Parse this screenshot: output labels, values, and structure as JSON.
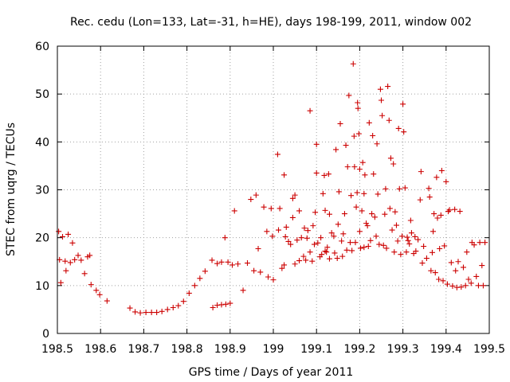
{
  "chart_data": {
    "type": "scatter",
    "title": "Rec. cedu (Lon=133, Lat=-31, h=HE), days 198-199, 2011, window 002",
    "xlabel": "GPS time / Days of year 2011",
    "ylabel": "STEC from uqrg / TECUs",
    "xlim": [
      198.5,
      199.5
    ],
    "ylim": [
      0,
      60
    ],
    "xticks": [
      198.5,
      198.6,
      198.7,
      198.8,
      198.9,
      199,
      199.1,
      199.2,
      199.3,
      199.4,
      199.5
    ],
    "xtick_labels": [
      "198.5",
      "198.6",
      "198.7",
      "198.8",
      "198.9",
      "199",
      "199.1",
      "199.2",
      "199.3",
      "199.4",
      "199.5"
    ],
    "yticks": [
      0,
      10,
      20,
      30,
      40,
      50,
      60
    ],
    "ytick_labels": [
      "0",
      "10",
      "20",
      "30",
      "40",
      "50",
      "60"
    ],
    "grid": true,
    "marker": "+",
    "color": "#cc0000",
    "series": [
      {
        "name": "STEC",
        "points": [
          [
            198.503,
            21.3
          ],
          [
            198.505,
            15.4
          ],
          [
            198.508,
            10.6
          ],
          [
            198.512,
            20.2
          ],
          [
            198.518,
            15.1
          ],
          [
            198.52,
            13.1
          ],
          [
            198.525,
            20.7
          ],
          [
            198.53,
            14.8
          ],
          [
            198.535,
            18.9
          ],
          [
            198.54,
            15.4
          ],
          [
            198.548,
            16.3
          ],
          [
            198.555,
            15.3
          ],
          [
            198.563,
            12.5
          ],
          [
            198.57,
            16.0
          ],
          [
            198.575,
            16.3
          ],
          [
            198.578,
            10.2
          ],
          [
            198.59,
            9.0
          ],
          [
            198.598,
            8.1
          ],
          [
            198.615,
            6.8
          ],
          [
            198.668,
            5.3
          ],
          [
            198.68,
            4.5
          ],
          [
            198.692,
            4.3
          ],
          [
            198.705,
            4.4
          ],
          [
            198.718,
            4.4
          ],
          [
            198.73,
            4.4
          ],
          [
            198.742,
            4.6
          ],
          [
            198.755,
            5.0
          ],
          [
            198.768,
            5.4
          ],
          [
            198.78,
            5.8
          ],
          [
            198.792,
            6.7
          ],
          [
            198.805,
            8.4
          ],
          [
            198.818,
            10.0
          ],
          [
            198.83,
            11.5
          ],
          [
            198.842,
            13.0
          ],
          [
            198.86,
            5.4
          ],
          [
            198.87,
            5.9
          ],
          [
            198.88,
            6.0
          ],
          [
            198.89,
            6.1
          ],
          [
            198.9,
            6.3
          ],
          [
            198.858,
            15.3
          ],
          [
            198.87,
            14.6
          ],
          [
            198.88,
            14.9
          ],
          [
            198.888,
            20.0
          ],
          [
            198.895,
            14.9
          ],
          [
            198.905,
            14.3
          ],
          [
            198.91,
            25.6
          ],
          [
            198.918,
            14.5
          ],
          [
            198.93,
            9.0
          ],
          [
            198.94,
            14.7
          ],
          [
            198.948,
            28.0
          ],
          [
            198.955,
            13.1
          ],
          [
            198.96,
            28.9
          ],
          [
            198.965,
            17.7
          ],
          [
            198.97,
            12.8
          ],
          [
            198.978,
            26.4
          ],
          [
            198.985,
            21.3
          ],
          [
            198.988,
            11.8
          ],
          [
            198.995,
            26.1
          ],
          [
            198.998,
            20.3
          ],
          [
            199.0,
            11.2
          ],
          [
            199.01,
            37.4
          ],
          [
            199.012,
            21.6
          ],
          [
            199.015,
            26.1
          ],
          [
            199.02,
            13.6
          ],
          [
            199.025,
            14.3
          ],
          [
            199.025,
            33.1
          ],
          [
            199.028,
            20.2
          ],
          [
            199.03,
            22.2
          ],
          [
            199.035,
            19.2
          ],
          [
            199.04,
            18.6
          ],
          [
            199.045,
            24.2
          ],
          [
            199.045,
            28.2
          ],
          [
            199.05,
            14.5
          ],
          [
            199.05,
            28.9
          ],
          [
            199.055,
            19.5
          ],
          [
            199.06,
            15.2
          ],
          [
            199.06,
            25.6
          ],
          [
            199.065,
            20.0
          ],
          [
            199.07,
            16.1
          ],
          [
            199.072,
            22.0
          ],
          [
            199.075,
            15.3
          ],
          [
            199.078,
            19.9
          ],
          [
            199.08,
            21.5
          ],
          [
            199.085,
            17.0
          ],
          [
            199.085,
            46.5
          ],
          [
            199.09,
            15.1
          ],
          [
            199.092,
            22.5
          ],
          [
            199.095,
            18.6
          ],
          [
            199.097,
            25.3
          ],
          [
            199.1,
            39.5
          ],
          [
            199.1,
            33.5
          ],
          [
            199.103,
            18.9
          ],
          [
            199.108,
            16.0
          ],
          [
            199.11,
            20.0
          ],
          [
            199.112,
            16.5
          ],
          [
            199.115,
            29.2
          ],
          [
            199.118,
            33.0
          ],
          [
            199.12,
            17.2
          ],
          [
            199.12,
            25.7
          ],
          [
            199.123,
            17.0
          ],
          [
            199.125,
            18.0
          ],
          [
            199.128,
            33.3
          ],
          [
            199.13,
            15.6
          ],
          [
            199.13,
            24.9
          ],
          [
            199.135,
            21.0
          ],
          [
            199.14,
            20.3
          ],
          [
            199.142,
            16.8
          ],
          [
            199.145,
            38.4
          ],
          [
            199.148,
            15.7
          ],
          [
            199.15,
            22.8
          ],
          [
            199.152,
            29.6
          ],
          [
            199.155,
            43.8
          ],
          [
            199.158,
            19.3
          ],
          [
            199.16,
            16.1
          ],
          [
            199.162,
            20.8
          ],
          [
            199.165,
            25.0
          ],
          [
            199.168,
            39.3
          ],
          [
            199.17,
            17.4
          ],
          [
            199.172,
            34.8
          ],
          [
            199.175,
            49.7
          ],
          [
            199.178,
            19.0
          ],
          [
            199.18,
            28.8
          ],
          [
            199.182,
            17.3
          ],
          [
            199.185,
            56.3
          ],
          [
            199.187,
            41.2
          ],
          [
            199.188,
            34.8
          ],
          [
            199.19,
            19.0
          ],
          [
            199.192,
            26.4
          ],
          [
            199.194,
            29.4
          ],
          [
            199.195,
            48.2
          ],
          [
            199.196,
            47.0
          ],
          [
            199.198,
            41.7
          ],
          [
            199.2,
            34.3
          ],
          [
            199.2,
            21.3
          ],
          [
            199.202,
            17.8
          ],
          [
            199.205,
            25.6
          ],
          [
            199.207,
            35.7
          ],
          [
            199.21,
            29.2
          ],
          [
            199.21,
            18.0
          ],
          [
            199.212,
            33.1
          ],
          [
            199.215,
            23.0
          ],
          [
            199.218,
            22.5
          ],
          [
            199.22,
            18.2
          ],
          [
            199.222,
            44.0
          ],
          [
            199.225,
            19.4
          ],
          [
            199.228,
            25.0
          ],
          [
            199.23,
            41.3
          ],
          [
            199.232,
            33.3
          ],
          [
            199.235,
            24.3
          ],
          [
            199.238,
            20.3
          ],
          [
            199.24,
            39.6
          ],
          [
            199.242,
            29.1
          ],
          [
            199.245,
            18.6
          ],
          [
            199.248,
            51.0
          ],
          [
            199.25,
            48.7
          ],
          [
            199.252,
            45.5
          ],
          [
            199.255,
            18.4
          ],
          [
            199.258,
            24.9
          ],
          [
            199.26,
            30.2
          ],
          [
            199.262,
            17.8
          ],
          [
            199.265,
            51.6
          ],
          [
            199.268,
            44.5
          ],
          [
            199.27,
            26.1
          ],
          [
            199.272,
            36.6
          ],
          [
            199.275,
            21.6
          ],
          [
            199.278,
            35.4
          ],
          [
            199.28,
            17.0
          ],
          [
            199.282,
            25.4
          ],
          [
            199.285,
            22.6
          ],
          [
            199.288,
            19.3
          ],
          [
            199.29,
            42.8
          ],
          [
            199.292,
            30.2
          ],
          [
            199.295,
            16.5
          ],
          [
            199.298,
            20.3
          ],
          [
            199.3,
            47.9
          ],
          [
            199.302,
            42.1
          ],
          [
            199.305,
            30.4
          ],
          [
            199.308,
            17.0
          ],
          [
            199.31,
            20.1
          ],
          [
            199.312,
            19.4
          ],
          [
            199.315,
            18.7
          ],
          [
            199.318,
            23.6
          ],
          [
            199.32,
            21.0
          ],
          [
            199.325,
            16.7
          ],
          [
            199.328,
            20.2
          ],
          [
            199.33,
            17.2
          ],
          [
            199.335,
            19.6
          ],
          [
            199.34,
            27.9
          ],
          [
            199.342,
            33.8
          ],
          [
            199.345,
            14.7
          ],
          [
            199.348,
            18.2
          ],
          [
            199.355,
            15.7
          ],
          [
            199.36,
            30.3
          ],
          [
            199.362,
            28.5
          ],
          [
            199.365,
            13.1
          ],
          [
            199.368,
            16.9
          ],
          [
            199.37,
            21.3
          ],
          [
            199.372,
            25.0
          ],
          [
            199.375,
            12.7
          ],
          [
            199.378,
            32.6
          ],
          [
            199.38,
            24.1
          ],
          [
            199.383,
            11.3
          ],
          [
            199.385,
            17.7
          ],
          [
            199.388,
            24.7
          ],
          [
            199.39,
            34.0
          ],
          [
            199.393,
            11.0
          ],
          [
            199.396,
            18.3
          ],
          [
            199.4,
            31.7
          ],
          [
            199.403,
            10.3
          ],
          [
            199.405,
            25.5
          ],
          [
            199.408,
            25.8
          ],
          [
            199.412,
            14.8
          ],
          [
            199.415,
            9.9
          ],
          [
            199.42,
            25.9
          ],
          [
            199.422,
            13.1
          ],
          [
            199.425,
            9.6
          ],
          [
            199.428,
            15.0
          ],
          [
            199.432,
            25.5
          ],
          [
            199.435,
            9.7
          ],
          [
            199.44,
            13.8
          ],
          [
            199.445,
            10.0
          ],
          [
            199.448,
            17.0
          ],
          [
            199.452,
            11.3
          ],
          [
            199.458,
            10.5
          ],
          [
            199.46,
            19.0
          ],
          [
            199.465,
            18.5
          ],
          [
            199.47,
            11.9
          ],
          [
            199.475,
            10.0
          ],
          [
            199.478,
            19.0
          ],
          [
            199.483,
            14.2
          ],
          [
            199.486,
            10.0
          ],
          [
            199.49,
            19.0
          ]
        ]
      }
    ]
  }
}
